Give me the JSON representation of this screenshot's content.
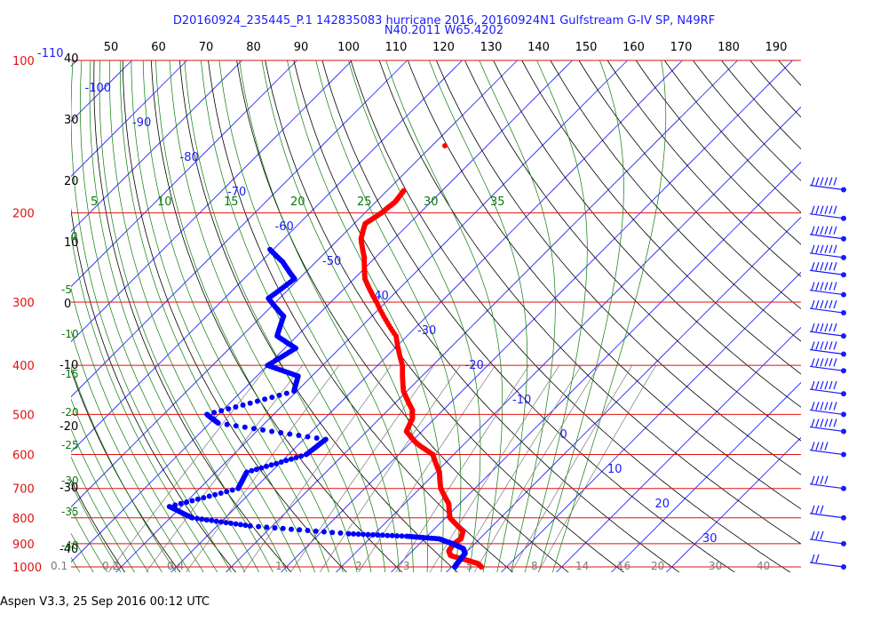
{
  "chart_data": {
    "type": "skew-t log-p sounding",
    "title_line1": "D20160924_235445_P.1 142835083 hurricane 2016, 20160924N1 Gulfstream G-IV SP, N49RF",
    "title_line2": "N40.2011 W65.4202",
    "footer": "Aspen V3.3, 25 Sep 2016  00:12 UTC",
    "pressure_levels_hPa": [
      "100",
      "200",
      "300",
      "400",
      "500",
      "600",
      "700",
      "800",
      "900",
      "1000"
    ],
    "height_labels_kft": [
      "40",
      "30",
      "20",
      "10",
      "0",
      "-10",
      "-20",
      "-30",
      "-40"
    ],
    "top_temp_labels": [
      "50",
      "60",
      "70",
      "80",
      "90",
      "100",
      "110",
      "120",
      "130",
      "140",
      "150",
      "160",
      "170",
      "180",
      "190"
    ],
    "isotherm_labels": [
      "-110",
      "-100",
      "-90",
      "-80",
      "-70",
      "-60",
      "-50",
      "-40",
      "-30",
      "-20",
      "-10",
      "0",
      "10",
      "20",
      "30"
    ],
    "mixing_ratio_labels": [
      "0.1",
      "0.2",
      "0.4",
      "1",
      "2",
      "3",
      "5",
      "8",
      "14",
      "16",
      "20",
      "30",
      "40"
    ],
    "moist_adiabat_labels_top": [
      "5",
      "10",
      "15",
      "20",
      "25",
      "30",
      "35"
    ],
    "moist_adiabat_labels_left": [
      "0",
      "-5",
      "-10",
      "-15",
      "-20",
      "-25",
      "-30",
      "-35",
      "-40"
    ],
    "temperature_profile": [
      {
        "p": 1000,
        "t": 25.4
      },
      {
        "p": 985,
        "t": 24.2
      },
      {
        "p": 970,
        "t": 21.6
      },
      {
        "p": 950,
        "t": 17.8
      },
      {
        "p": 930,
        "t": 16.6
      },
      {
        "p": 900,
        "t": 16.2
      },
      {
        "p": 880,
        "t": 16.6
      },
      {
        "p": 850,
        "t": 15.6
      },
      {
        "p": 800,
        "t": 10.8
      },
      {
        "p": 750,
        "t": 8.0
      },
      {
        "p": 700,
        "t": 3.8
      },
      {
        "p": 650,
        "t": 0.6
      },
      {
        "p": 600,
        "t": -3.8
      },
      {
        "p": 570,
        "t": -8.8
      },
      {
        "p": 540,
        "t": -12.8
      },
      {
        "p": 510,
        "t": -14.0
      },
      {
        "p": 490,
        "t": -15.6
      },
      {
        "p": 450,
        "t": -20.6
      },
      {
        "p": 400,
        "t": -25.5
      },
      {
        "p": 350,
        "t": -32.0
      },
      {
        "p": 300,
        "t": -41.7
      },
      {
        "p": 270,
        "t": -48.0
      },
      {
        "p": 245,
        "t": -52.0
      },
      {
        "p": 225,
        "t": -56.0
      },
      {
        "p": 210,
        "t": -58.0
      },
      {
        "p": 200,
        "t": -57.0
      },
      {
        "p": 190,
        "t": -56.5
      },
      {
        "p": 180,
        "t": -57.0
      }
    ],
    "dewpoint_profile": [
      {
        "p": 1000,
        "t": 20.6
      },
      {
        "p": 985,
        "t": 20.4
      },
      {
        "p": 960,
        "t": 20.2
      },
      {
        "p": 940,
        "t": 20.0
      },
      {
        "p": 920,
        "t": 18.8
      },
      {
        "p": 900,
        "t": 16.0
      },
      {
        "p": 880,
        "t": 12.6
      },
      {
        "p": 870,
        "t": 6.3
      },
      {
        "p": 860,
        "t": -4.7
      },
      {
        "p": 830,
        "t": -24.0
      },
      {
        "p": 800,
        "t": -36.0
      },
      {
        "p": 760,
        "t": -42.2
      },
      {
        "p": 700,
        "t": -33.0
      },
      {
        "p": 650,
        "t": -34.4
      },
      {
        "p": 600,
        "t": -26.8
      },
      {
        "p": 560,
        "t": -26.0
      },
      {
        "p": 520,
        "t": -48.5
      },
      {
        "p": 500,
        "t": -52.1
      },
      {
        "p": 450,
        "t": -40.5
      },
      {
        "p": 420,
        "t": -42.5
      },
      {
        "p": 400,
        "t": -50.0
      },
      {
        "p": 370,
        "t": -48.0
      },
      {
        "p": 350,
        "t": -53.6
      },
      {
        "p": 320,
        "t": -56.0
      },
      {
        "p": 295,
        "t": -62.0
      },
      {
        "p": 270,
        "t": -60.8
      },
      {
        "p": 250,
        "t": -66.0
      },
      {
        "p": 235,
        "t": -71.0
      }
    ],
    "wind_barbs": [
      {
        "p": 180,
        "speed_kt": 75
      },
      {
        "p": 205,
        "speed_kt": 60
      },
      {
        "p": 225,
        "speed_kt": 95
      },
      {
        "p": 245,
        "speed_kt": 85
      },
      {
        "p": 265,
        "speed_kt": 90
      },
      {
        "p": 290,
        "speed_kt": 100
      },
      {
        "p": 315,
        "speed_kt": 110
      },
      {
        "p": 350,
        "speed_kt": 105
      },
      {
        "p": 380,
        "speed_kt": 95
      },
      {
        "p": 410,
        "speed_kt": 80
      },
      {
        "p": 455,
        "speed_kt": 60
      },
      {
        "p": 500,
        "speed_kt": 65
      },
      {
        "p": 540,
        "speed_kt": 70
      },
      {
        "p": 600,
        "speed_kt": 40
      },
      {
        "p": 700,
        "speed_kt": 35
      },
      {
        "p": 800,
        "speed_kt": 30
      },
      {
        "p": 900,
        "speed_kt": 25
      },
      {
        "p": 1000,
        "speed_kt": 15
      }
    ],
    "colors": {
      "pressure_lines": "#e01010",
      "isotherms": "#1a1aff",
      "dry_adiabats": "#000000",
      "moist_adiabats": "#0a7a0a",
      "mixing_ratio": "#7a7a7a",
      "temperature": "#ff0000",
      "dewpoint": "#0000ff"
    }
  }
}
